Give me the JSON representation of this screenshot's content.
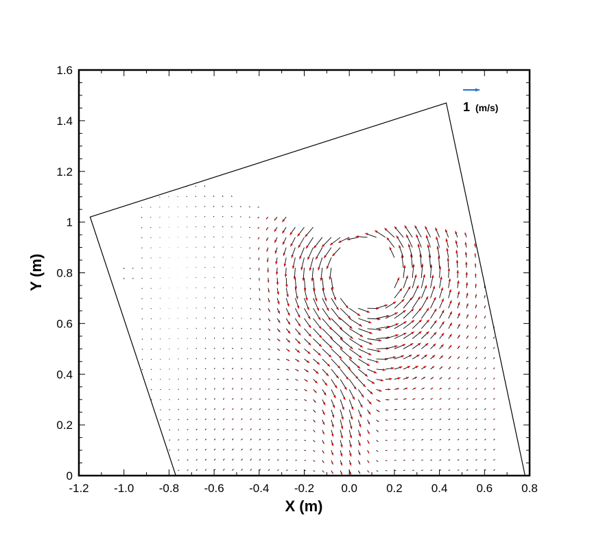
{
  "chart_data": {
    "type": "vector-field",
    "xlabel": "X (m)",
    "ylabel": "Y (m)",
    "xlim": [
      -1.2,
      0.8
    ],
    "ylim": [
      0,
      1.6
    ],
    "x_ticks": [
      "-1.2",
      "-1.0",
      "-0.8",
      "-0.6",
      "-0.4",
      "-0.2",
      "0.0",
      "0.2",
      "0.4",
      "0.6",
      "0.8"
    ],
    "y_ticks": [
      "0",
      "0.2",
      "0.4",
      "0.6",
      "0.8",
      "1",
      "1.2",
      "1.4",
      "1.6"
    ],
    "reference_vector": {
      "magnitude": 1,
      "value_label": "1",
      "unit_label": "(m/s)",
      "color": "#1f6fd1"
    },
    "boundary_polygon": [
      [
        -1.15,
        1.02
      ],
      [
        0.43,
        1.47
      ],
      [
        0.78,
        0.0
      ],
      [
        -0.77,
        0.0
      ]
    ],
    "vortex_center": [
      0.07,
      0.8
    ],
    "grid_spacing": 0.04,
    "arrow_color": "#000000",
    "arrow_head_color": "#d40000"
  }
}
